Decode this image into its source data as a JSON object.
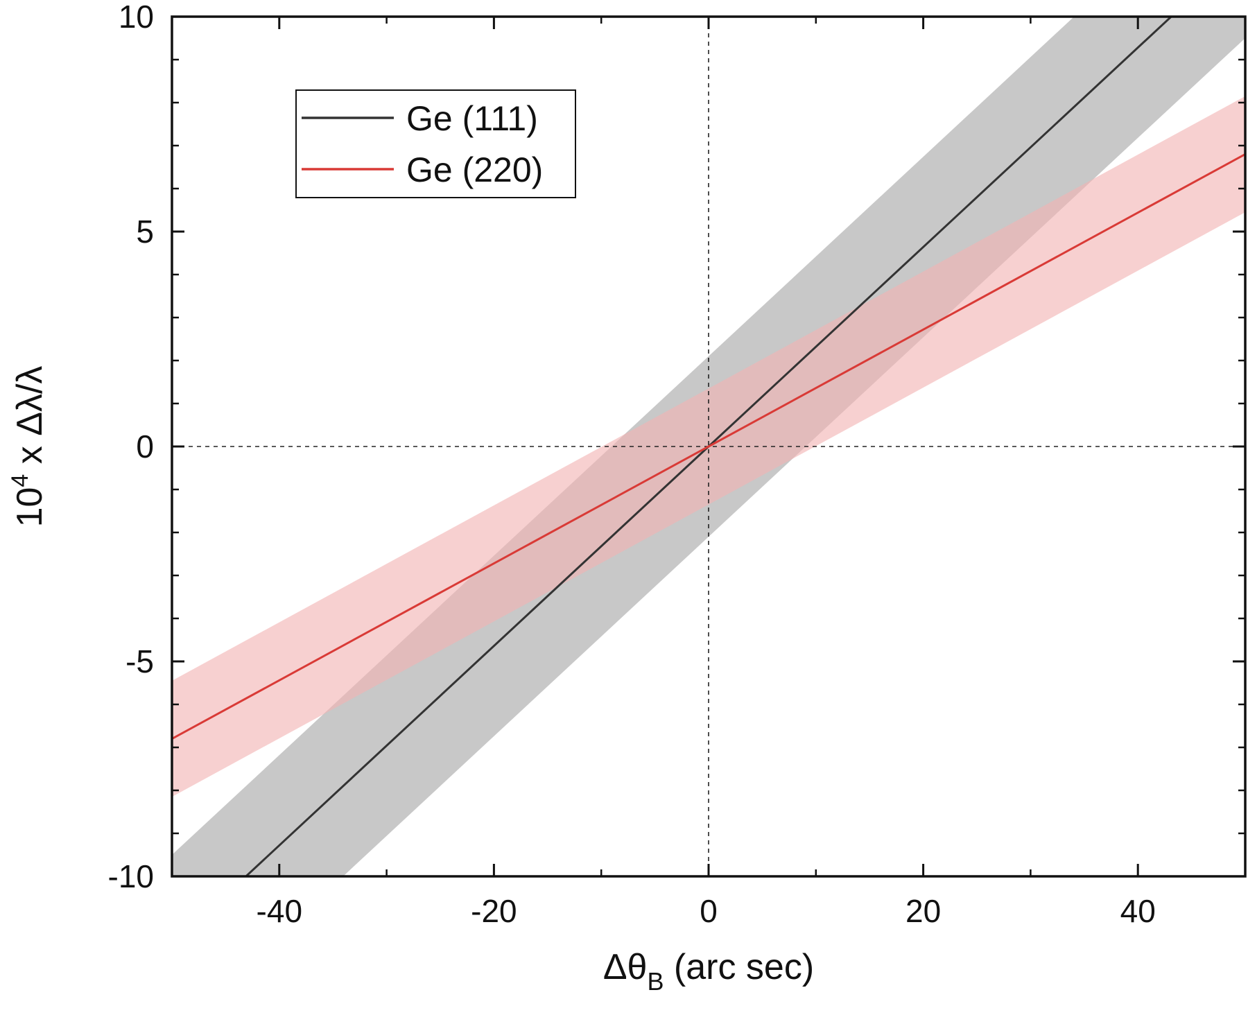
{
  "chart_data": {
    "type": "line",
    "xlabel": {
      "main": "Δθ",
      "sub": "B",
      "rest": " (arc sec)"
    },
    "ylabel": {
      "pre": "10",
      "sup": "4",
      "rest": " x Δλ/λ"
    },
    "xlim": [
      -50,
      50
    ],
    "ylim": [
      -10,
      10
    ],
    "xticks": [
      -40,
      -20,
      0,
      20,
      40
    ],
    "xtick_labels": [
      "-40",
      "-20",
      "0",
      "20",
      "40"
    ],
    "x_minor_ticks": [
      -30,
      -10,
      10,
      30
    ],
    "yticks": [
      -10,
      -5,
      0,
      5,
      10
    ],
    "ytick_labels": [
      "-10",
      "-5",
      "0",
      "5",
      "10"
    ],
    "y_minor_step": 1,
    "zero_reference_lines": true,
    "legend_position": "upper-left",
    "series": [
      {
        "name": "Ge (111)",
        "color": "#333333",
        "band_color": "#c8c8c8",
        "x": [
          -50,
          50
        ],
        "y": [
          -11.6,
          11.6
        ],
        "band_halfwidth": 2.1
      },
      {
        "name": "Ge (220)",
        "color": "#d93a36",
        "band_color": "#f2b3b3",
        "x": [
          -50,
          50
        ],
        "y": [
          -6.8,
          6.8
        ],
        "band_halfwidth": 1.35
      }
    ]
  }
}
